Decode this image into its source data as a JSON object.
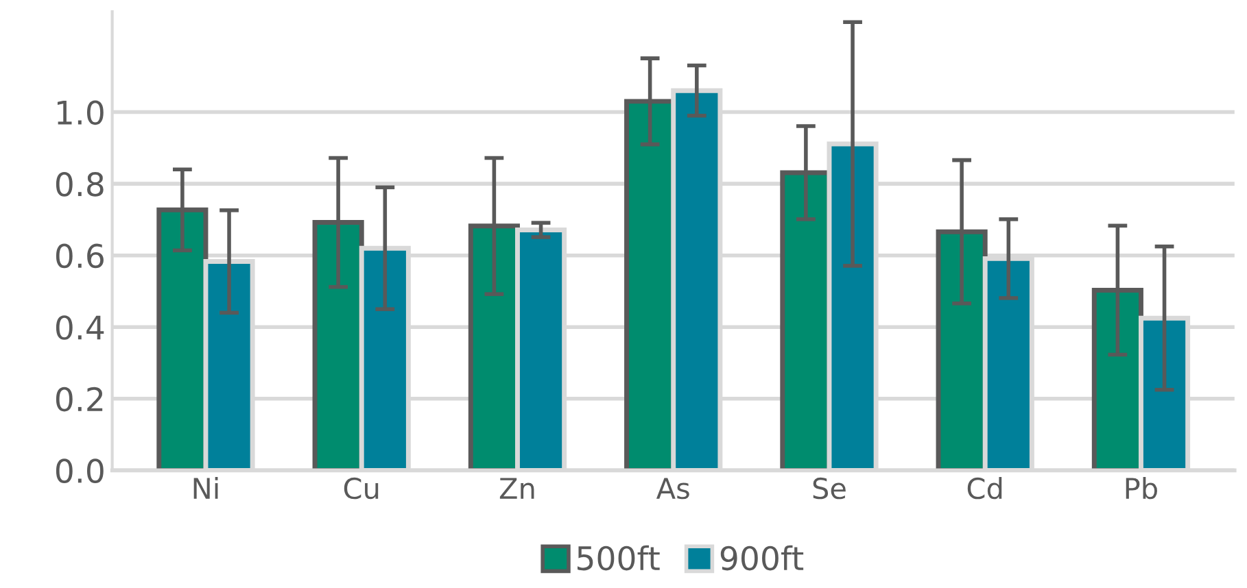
{
  "chart_data": {
    "type": "bar",
    "categories": [
      "Ni",
      "Cu",
      "Zn",
      "As",
      "Se",
      "Cd",
      "Pb"
    ],
    "series": [
      {
        "name": "500ft",
        "color": "#008c6e",
        "values": [
          0.727,
          0.692,
          0.682,
          1.03,
          0.831,
          0.666,
          0.503
        ],
        "errors": [
          0.113,
          0.18,
          0.19,
          0.12,
          0.13,
          0.2,
          0.18
        ]
      },
      {
        "name": "900ft",
        "color": "#00809a",
        "values": [
          0.583,
          0.62,
          0.671,
          1.06,
          0.911,
          0.591,
          0.425
        ],
        "errors": [
          0.143,
          0.17,
          0.02,
          0.07,
          0.34,
          0.11,
          0.2
        ]
      }
    ],
    "ylim": [
      0,
      1.28
    ],
    "yticks": [
      {
        "value": 0,
        "label": "0.0"
      },
      0.2,
      0.4,
      0.6,
      0.8,
      {
        "value": 1,
        "label": "1.0"
      }
    ],
    "grid": "y",
    "legend": "bottom"
  }
}
